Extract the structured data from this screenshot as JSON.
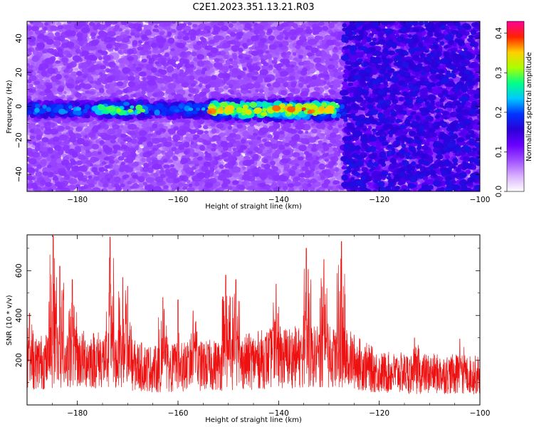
{
  "figure_title": "C2E1.2023.351.13.21.R03",
  "colors": {
    "snr_line": "#ee1111",
    "colormap": [
      "#ffffff",
      "#d8b0ff",
      "#a050ff",
      "#6a00ff",
      "#2a00d8",
      "#0033ff",
      "#00c8ff",
      "#00ff88",
      "#aaff00",
      "#ffd000",
      "#ff2200",
      "#ff0099"
    ]
  },
  "chart_data": [
    {
      "type": "heatmap",
      "xlabel": "Height of straight line (km)",
      "ylabel": "Frequency (Hz)",
      "xlim": [
        -190,
        -100
      ],
      "ylim": [
        -50,
        50
      ],
      "xticks": [
        -180,
        -160,
        -140,
        -120,
        -100
      ],
      "yticks": [
        -40,
        -20,
        0,
        20,
        40
      ],
      "colorbar": {
        "label": "Normalized spectral amplitude",
        "range": [
          0,
          0.43
        ],
        "ticks": [
          "0.0",
          "0.1",
          "0.2",
          "0.3",
          "0.4"
        ]
      },
      "signal_band": {
        "center_hz": -2,
        "halfwidth_hz": 7,
        "segments": [
          {
            "x": [
              -190,
              -127
            ],
            "peak_amplitude": 0.22
          },
          {
            "x": [
              -176,
              -167
            ],
            "peak_amplitude": 0.28
          },
          {
            "x": [
              -154,
              -128
            ],
            "peak_amplitude": 0.36
          }
        ]
      },
      "background_amplitude": {
        "x_lt_-127": 0.05,
        "x_gt_-127": 0.09
      }
    },
    {
      "type": "line",
      "xlabel": "Height of straight line (km)",
      "ylabel": "SNR (10 * v/v)",
      "xlim": [
        -190,
        -100
      ],
      "ylim": [
        0,
        760
      ],
      "xticks": [
        -180,
        -160,
        -140,
        -120,
        -100
      ],
      "yticks": [
        200,
        400,
        600
      ],
      "series": [
        {
          "baseline_x": [
            -190,
            -182,
            -175,
            -165,
            -150,
            -140,
            -127,
            -120,
            -100
          ],
          "baseline_y": [
            175,
            190,
            190,
            150,
            170,
            200,
            200,
            135,
            125
          ],
          "peaks": [
            {
              "x": -184.8,
              "y": 756
            },
            {
              "x": -183.5,
              "y": 620
            },
            {
              "x": -181,
              "y": 560
            },
            {
              "x": -173.5,
              "y": 750
            },
            {
              "x": -171,
              "y": 570
            },
            {
              "x": -170,
              "y": 530
            },
            {
              "x": -150.5,
              "y": 580
            },
            {
              "x": -148.5,
              "y": 560
            },
            {
              "x": -140.5,
              "y": 540
            },
            {
              "x": -134.5,
              "y": 700
            },
            {
              "x": -131,
              "y": 650
            },
            {
              "x": -127.5,
              "y": 730
            },
            {
              "x": -163,
              "y": 480
            },
            {
              "x": -160,
              "y": 470
            },
            {
              "x": -157,
              "y": 420
            },
            {
              "x": -189.5,
              "y": 410
            },
            {
              "x": -113,
              "y": 300
            },
            {
              "x": -104,
              "y": 295
            }
          ]
        }
      ]
    }
  ]
}
